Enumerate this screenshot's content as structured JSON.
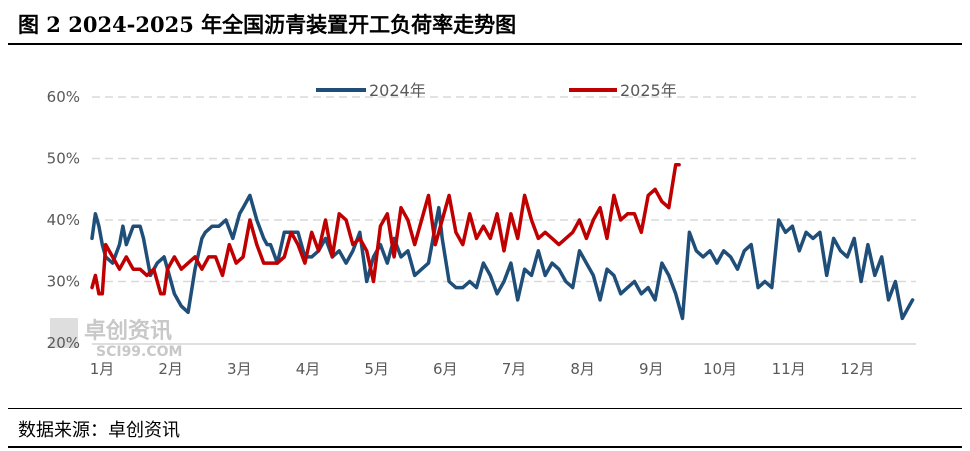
{
  "title": "图 2 2024-2025 年全国沥青装置开工负荷率走势图",
  "source": "数据来源：卓创资讯",
  "watermark": {
    "main": "卓创资讯",
    "sub": "SCI99.COM"
  },
  "colors": {
    "series_2024": "#1f4e79",
    "series_2025": "#c00000",
    "grid": "#d9d9d9",
    "axis_text": "#595959"
  },
  "chart_data": {
    "type": "line",
    "title": "图 2 2024-2025 年全国沥青装置开工负荷率走势图",
    "xlabel": "",
    "ylabel": "",
    "x_unit": "month (fractional)",
    "xlim": [
      1,
      13
    ],
    "ylim": [
      20,
      60
    ],
    "yticks": [
      "20%",
      "30%",
      "40%",
      "50%",
      "60%"
    ],
    "xticks": [
      "1月",
      "2月",
      "3月",
      "4月",
      "5月",
      "6月",
      "7月",
      "8月",
      "9月",
      "10月",
      "11月",
      "12月"
    ],
    "grid": true,
    "legend_position": "top",
    "series": [
      {
        "name": "2024年",
        "x": [
          1.0,
          1.05,
          1.1,
          1.15,
          1.2,
          1.3,
          1.4,
          1.45,
          1.5,
          1.6,
          1.7,
          1.75,
          1.85,
          1.95,
          2.05,
          2.15,
          2.2,
          2.3,
          2.4,
          2.5,
          2.6,
          2.65,
          2.75,
          2.85,
          2.95,
          3.05,
          3.15,
          3.2,
          3.3,
          3.4,
          3.5,
          3.55,
          3.6,
          3.7,
          3.8,
          3.9,
          4.0,
          4.1,
          4.2,
          4.3,
          4.4,
          4.5,
          4.6,
          4.7,
          4.8,
          4.9,
          5.0,
          5.1,
          5.2,
          5.3,
          5.4,
          5.5,
          5.6,
          5.7,
          5.8,
          5.9,
          6.0,
          6.05,
          6.1,
          6.2,
          6.3,
          6.4,
          6.5,
          6.6,
          6.7,
          6.8,
          6.9,
          7.0,
          7.1,
          7.2,
          7.3,
          7.4,
          7.5,
          7.6,
          7.7,
          7.8,
          7.9,
          8.0,
          8.1,
          8.2,
          8.3,
          8.4,
          8.5,
          8.6,
          8.7,
          8.8,
          8.9,
          9.0,
          9.1,
          9.2,
          9.3,
          9.4,
          9.5,
          9.6,
          9.7,
          9.8,
          9.9,
          10.0,
          10.1,
          10.2,
          10.3,
          10.4,
          10.5,
          10.6,
          10.7,
          10.8,
          10.9,
          11.0,
          11.1,
          11.2,
          11.3,
          11.4,
          11.5,
          11.6,
          11.7,
          11.8,
          11.9,
          12.0,
          12.1,
          12.2,
          12.3,
          12.4,
          12.5,
          12.6,
          12.7,
          12.8,
          12.9,
          12.95
        ],
        "values": [
          37,
          41,
          39,
          36,
          34,
          33,
          36,
          39,
          36,
          39,
          39,
          37,
          31,
          33,
          34,
          30,
          28,
          26,
          25,
          32,
          37,
          38,
          39,
          39,
          40,
          37,
          41,
          42,
          44,
          40,
          37,
          36,
          36,
          33,
          38,
          38,
          38,
          34,
          34,
          35,
          37,
          34,
          35,
          33,
          35,
          38,
          30,
          34,
          36,
          33,
          37,
          34,
          35,
          31,
          32,
          33,
          39,
          42,
          37,
          30,
          29,
          29,
          30,
          29,
          33,
          31,
          28,
          30,
          33,
          27,
          32,
          31,
          35,
          31,
          33,
          32,
          30,
          29,
          35,
          33,
          31,
          27,
          32,
          31,
          28,
          29,
          30,
          28,
          29,
          27,
          33,
          31,
          28,
          24,
          38,
          35,
          34,
          35,
          33,
          35,
          34,
          32,
          35,
          36,
          29,
          30,
          29,
          40,
          38,
          39,
          35,
          38,
          37,
          38,
          31,
          37,
          35,
          34,
          37,
          30,
          36,
          31,
          34,
          27,
          30,
          24,
          26,
          27
        ]
      },
      {
        "name": "2025年",
        "x": [
          1.0,
          1.05,
          1.1,
          1.15,
          1.2,
          1.3,
          1.4,
          1.5,
          1.6,
          1.7,
          1.8,
          1.9,
          2.0,
          2.05,
          2.1,
          2.2,
          2.3,
          2.4,
          2.5,
          2.6,
          2.7,
          2.8,
          2.9,
          3.0,
          3.1,
          3.2,
          3.3,
          3.4,
          3.5,
          3.6,
          3.7,
          3.8,
          3.9,
          4.0,
          4.1,
          4.2,
          4.3,
          4.4,
          4.5,
          4.6,
          4.7,
          4.8,
          4.9,
          5.0,
          5.1,
          5.2,
          5.3,
          5.4,
          5.5,
          5.6,
          5.7,
          5.8,
          5.9,
          6.0,
          6.1,
          6.2,
          6.3,
          6.4,
          6.5,
          6.6,
          6.7,
          6.8,
          6.9,
          7.0,
          7.1,
          7.2,
          7.3,
          7.4,
          7.5,
          7.6,
          7.7,
          7.8,
          7.9,
          8.0,
          8.1,
          8.2,
          8.3,
          8.4,
          8.5,
          8.6,
          8.7,
          8.8,
          8.9,
          9.0,
          9.1,
          9.2,
          9.3,
          9.4,
          9.5,
          9.55
        ],
        "values": [
          29,
          31,
          28,
          28,
          36,
          34,
          32,
          34,
          32,
          32,
          31,
          32,
          28,
          28,
          32,
          34,
          32,
          33,
          34,
          32,
          34,
          34,
          31,
          36,
          33,
          34,
          40,
          36,
          33,
          33,
          33,
          34,
          38,
          36,
          33,
          38,
          35,
          40,
          34,
          41,
          40,
          36,
          37,
          35,
          30,
          39,
          41,
          34,
          42,
          40,
          36,
          40,
          44,
          36,
          40,
          44,
          38,
          36,
          41,
          37,
          39,
          37,
          41,
          35,
          41,
          37,
          44,
          40,
          37,
          38,
          37,
          36,
          37,
          38,
          40,
          37,
          40,
          42,
          37,
          44,
          40,
          41,
          41,
          38,
          44,
          45,
          43,
          42,
          49,
          49
        ]
      }
    ]
  }
}
